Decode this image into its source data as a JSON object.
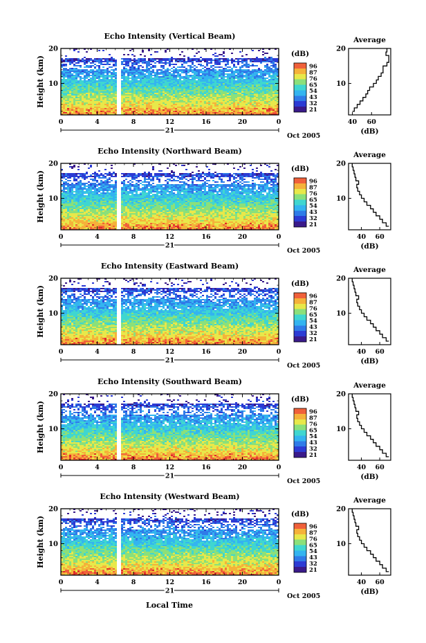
{
  "chart_data": {
    "type": "heatmap",
    "xlabel": "Local Time",
    "x_ticks": [
      "0",
      "4",
      "8",
      "12",
      "16",
      "20",
      "0"
    ],
    "xlim": [
      0,
      24
    ],
    "date_label": "21",
    "month_label": "Oct 2005",
    "colorbar_unit": "(dB)",
    "panels": [
      {
        "title": "Echo Intensity (Vertical Beam)",
        "ylabel": "Height (km)",
        "y_ticks": [
          "20",
          "10"
        ],
        "colorbar_ticks": [
          "96",
          "87",
          "76",
          "65",
          "54",
          "43",
          "32",
          "21"
        ],
        "profile_title": "Average",
        "profile_xlabel": "(dB)",
        "profile_x_ticks": [
          "40",
          "60"
        ],
        "profile_y_ticks": [
          "20",
          "10"
        ],
        "profile": [
          [
            40,
            2
          ],
          [
            42,
            3
          ],
          [
            45,
            4
          ],
          [
            48,
            5
          ],
          [
            51,
            6
          ],
          [
            54,
            7
          ],
          [
            56,
            8
          ],
          [
            58,
            9
          ],
          [
            62,
            10
          ],
          [
            65,
            11
          ],
          [
            67,
            12
          ],
          [
            70,
            13
          ],
          [
            72,
            14
          ],
          [
            72,
            15
          ],
          [
            76,
            16
          ],
          [
            78,
            17
          ],
          [
            78,
            18
          ],
          [
            75,
            19
          ],
          [
            76,
            20
          ]
        ]
      },
      {
        "title": "Echo Intensity (Northward Beam)",
        "ylabel": "Height (km)",
        "y_ticks": [
          "20",
          "10"
        ],
        "colorbar_ticks": [
          "96",
          "87",
          "76",
          "65",
          "54",
          "43",
          "32",
          "21"
        ],
        "profile_title": "Average",
        "profile_xlabel": "(dB)",
        "profile_x_ticks": [
          "40",
          "60"
        ],
        "profile_y_ticks": [
          "20",
          "10"
        ],
        "profile": [
          [
            70,
            2
          ],
          [
            67,
            3
          ],
          [
            63,
            4
          ],
          [
            60,
            5
          ],
          [
            56,
            6
          ],
          [
            53,
            7
          ],
          [
            50,
            8
          ],
          [
            46,
            9
          ],
          [
            43,
            10
          ],
          [
            40,
            11
          ],
          [
            38,
            12
          ],
          [
            36,
            13
          ],
          [
            35,
            14
          ],
          [
            37,
            15
          ],
          [
            34,
            16
          ],
          [
            33,
            17
          ],
          [
            32,
            18
          ],
          [
            31,
            19
          ],
          [
            30,
            20
          ]
        ]
      },
      {
        "title": "Echo Intensity (Eastward Beam)",
        "ylabel": "Height (km)",
        "y_ticks": [
          "20",
          "10"
        ],
        "colorbar_ticks": [
          "96",
          "87",
          "76",
          "65",
          "54",
          "43",
          "32",
          "21"
        ],
        "profile_title": "Average",
        "profile_xlabel": "(dB)",
        "profile_x_ticks": [
          "40",
          "60"
        ],
        "profile_y_ticks": [
          "20",
          "10"
        ],
        "profile": [
          [
            70,
            2
          ],
          [
            67,
            3
          ],
          [
            63,
            4
          ],
          [
            60,
            5
          ],
          [
            56,
            6
          ],
          [
            53,
            7
          ],
          [
            50,
            8
          ],
          [
            46,
            9
          ],
          [
            43,
            10
          ],
          [
            40,
            11
          ],
          [
            38,
            12
          ],
          [
            36,
            13
          ],
          [
            35,
            14
          ],
          [
            37,
            15
          ],
          [
            34,
            16
          ],
          [
            33,
            17
          ],
          [
            32,
            18
          ],
          [
            31,
            19
          ],
          [
            30,
            20
          ]
        ]
      },
      {
        "title": "Echo Intensity (Southward Beam)",
        "ylabel": "Height (km)",
        "y_ticks": [
          "20",
          "10"
        ],
        "colorbar_ticks": [
          "96",
          "87",
          "76",
          "65",
          "54",
          "43",
          "32",
          "21"
        ],
        "profile_title": "Average",
        "profile_xlabel": "(dB)",
        "profile_x_ticks": [
          "40",
          "60"
        ],
        "profile_y_ticks": [
          "20",
          "10"
        ],
        "profile": [
          [
            70,
            2
          ],
          [
            67,
            3
          ],
          [
            63,
            4
          ],
          [
            60,
            5
          ],
          [
            56,
            6
          ],
          [
            53,
            7
          ],
          [
            50,
            8
          ],
          [
            46,
            9
          ],
          [
            43,
            10
          ],
          [
            40,
            11
          ],
          [
            38,
            12
          ],
          [
            36,
            13
          ],
          [
            35,
            14
          ],
          [
            37,
            15
          ],
          [
            34,
            16
          ],
          [
            33,
            17
          ],
          [
            32,
            18
          ],
          [
            31,
            19
          ],
          [
            30,
            20
          ]
        ]
      },
      {
        "title": "Echo Intensity (Westward Beam)",
        "ylabel": "Height (km)",
        "y_ticks": [
          "20",
          "10"
        ],
        "colorbar_ticks": [
          "96",
          "87",
          "76",
          "65",
          "54",
          "43",
          "32",
          "21"
        ],
        "profile_title": "Average",
        "profile_xlabel": "(dB)",
        "profile_x_ticks": [
          "40",
          "60"
        ],
        "profile_y_ticks": [
          "20",
          "10"
        ],
        "profile": [
          [
            70,
            2
          ],
          [
            67,
            3
          ],
          [
            63,
            4
          ],
          [
            60,
            5
          ],
          [
            56,
            6
          ],
          [
            53,
            7
          ],
          [
            50,
            8
          ],
          [
            46,
            9
          ],
          [
            43,
            10
          ],
          [
            40,
            11
          ],
          [
            38,
            12
          ],
          [
            36,
            13
          ],
          [
            35,
            14
          ],
          [
            37,
            15
          ],
          [
            34,
            16
          ],
          [
            33,
            17
          ],
          [
            32,
            18
          ],
          [
            31,
            19
          ],
          [
            30,
            20
          ]
        ]
      }
    ],
    "colorscale": [
      "#3a1a8a",
      "#2c3bd4",
      "#2f7be8",
      "#33b4f0",
      "#3fd6d0",
      "#8be07a",
      "#e8e84a",
      "#f5b23a",
      "#f0603a",
      "#e02a2a"
    ],
    "data_gap": [
      6.1,
      6.6
    ]
  }
}
